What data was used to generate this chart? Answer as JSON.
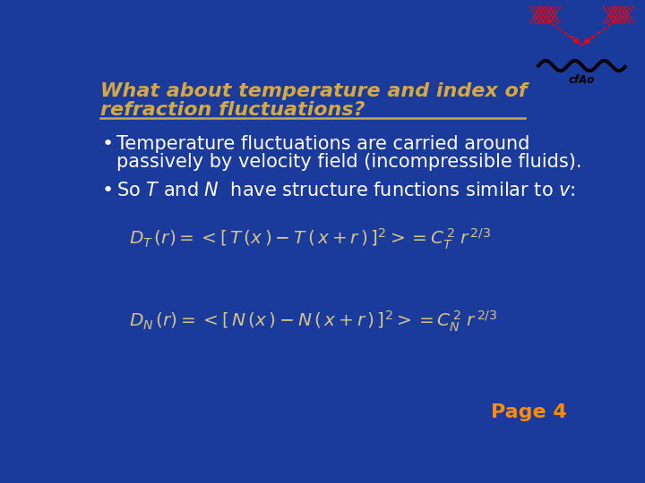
{
  "bg_color": "#1a3a9c",
  "title_color": "#d4a843",
  "body_color": "#ffffff",
  "formula_color": "#d4c48a",
  "page_label_color": "#ff8c00",
  "separator_color": "#c8a84b",
  "title_line1": "What about temperature and index of",
  "title_line2": "refraction fluctuations?",
  "bullet1_line1": "Temperature fluctuations are carried around",
  "bullet1_line2": "passively by velocity field (incompressible fluids).",
  "bullet2_plain": "So ",
  "bullet2_italic1": "T",
  "bullet2_mid": " and ",
  "bullet2_italic2": "N",
  "bullet2_end": "  have structure functions similar to ",
  "bullet2_italic3": "v",
  "bullet2_colon": ":",
  "page_label": "Page 4",
  "title_fontsize": 16,
  "body_fontsize": 15,
  "formula_fontsize": 14.5,
  "page_fontsize": 16
}
